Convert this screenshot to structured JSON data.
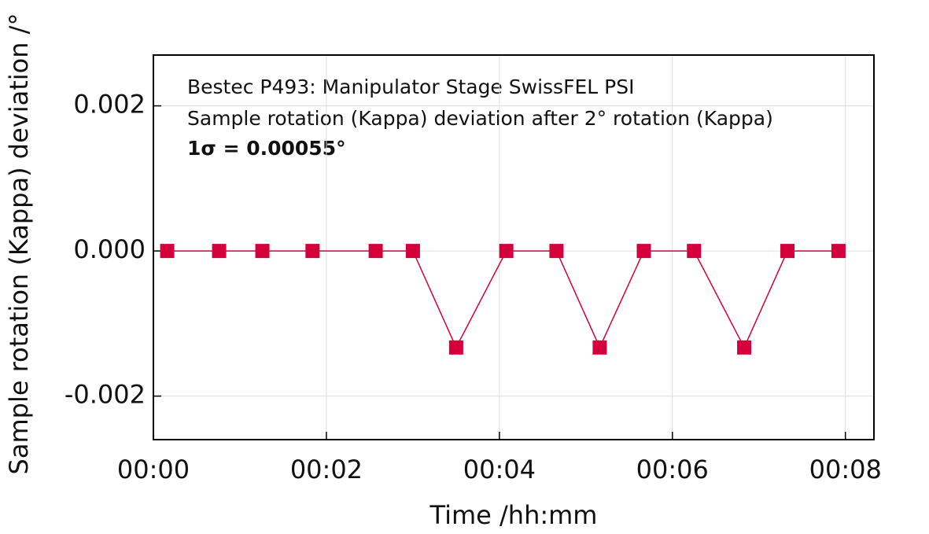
{
  "chart_data": {
    "type": "line",
    "annotations": [
      "Bestec P493: Manipulator Stage SwissFEL PSI",
      "Sample rotation (Kappa) deviation after 2° rotation (Kappa)",
      "1σ = 0.00055°"
    ],
    "x_label": "Time /hh:mm",
    "y_label": "Sample rotation (Kappa) deviation /°",
    "x": [
      0.16,
      0.76,
      1.26,
      1.84,
      2.57,
      3.0,
      3.5,
      4.08,
      4.66,
      5.16,
      5.67,
      6.25,
      6.83,
      7.33,
      7.92
    ],
    "series": [
      {
        "color": "#d4003c",
        "values": [
          0,
          0,
          0,
          0,
          0,
          0,
          -0.00133,
          0,
          0,
          -0.00133,
          0,
          0,
          -0.00133,
          0,
          0
        ]
      }
    ],
    "xlim": [
      0,
      8.33
    ],
    "xticks": [
      {
        "value": 0,
        "label": "00:00"
      },
      {
        "value": 2,
        "label": "00:02"
      },
      {
        "value": 4,
        "label": "00:04"
      },
      {
        "value": 6,
        "label": "00:06"
      },
      {
        "value": 8,
        "label": "00:08"
      }
    ],
    "ylim": [
      -0.0026,
      0.0027
    ],
    "yticks": [
      -0.002,
      {
        "value": 0,
        "label": "0.000"
      },
      0.002
    ],
    "grid": true
  }
}
